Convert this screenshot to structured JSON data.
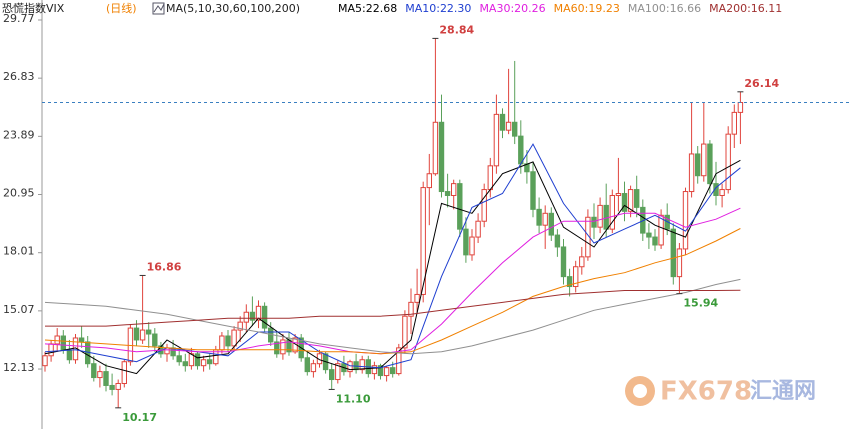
{
  "chart_data": {
    "type": "candlestick",
    "title": "恐慌指数VIX",
    "period": "(日线)",
    "indicator": "MA(5,10,30,60,100,200)",
    "ylim": [
      9.1,
      30.78
    ],
    "yticks": [
      29.77,
      26.83,
      23.89,
      20.95,
      18.01,
      15.07,
      12.13
    ],
    "up_color": "#e0443c",
    "down_color": "#5aa05a",
    "open": [
      12.3,
      12.8,
      13.4,
      13.8,
      13.1,
      12.6,
      13.7,
      13.5,
      12.4,
      11.7,
      12.0,
      11.3,
      11.1,
      11.4,
      12.5,
      14.2,
      13.6,
      14.1,
      13.9,
      13.3,
      12.9,
      13.2,
      12.8,
      12.5,
      12.3,
      12.9,
      12.3,
      12.6,
      12.4,
      13.1,
      13.8,
      13.3,
      14.1,
      14.5,
      15.0,
      14.6,
      15.3,
      14.2,
      13.5,
      12.9,
      13.6,
      13.0,
      13.7,
      12.7,
      12.0,
      12.4,
      12.9,
      12.1,
      11.6,
      12.4,
      12.0,
      12.5,
      12.1,
      12.6,
      11.9,
      12.3,
      11.8,
      12.2,
      11.9,
      13.2,
      14.8,
      15.5,
      15.9,
      21.3,
      22.0,
      24.6,
      21.1,
      20.9,
      21.5,
      19.2,
      17.9,
      18.8,
      19.6,
      21.2,
      22.4,
      25.0,
      24.2,
      24.6,
      23.9,
      22.5,
      22.1,
      20.2,
      19.4,
      20.0,
      18.9,
      18.3,
      16.8,
      16.3,
      17.3,
      17.8,
      19.8,
      19.3,
      20.4,
      19.2,
      20.9,
      21.0,
      20.1,
      21.2,
      20.3,
      19.0,
      18.8,
      18.4,
      19.9,
      19.2,
      16.8,
      18.2,
      21.1,
      23.0,
      21.9,
      23.5,
      21.5,
      20.9,
      21.2,
      24.0,
      25.1
    ],
    "high": [
      13.0,
      13.6,
      14.2,
      14.1,
      13.6,
      13.9,
      14.3,
      13.8,
      12.8,
      12.3,
      12.4,
      11.9,
      11.6,
      12.6,
      14.4,
      14.6,
      16.86,
      14.5,
      14.2,
      13.5,
      13.4,
      13.6,
      13.1,
      12.9,
      13.2,
      13.0,
      12.8,
      12.9,
      13.3,
      14.0,
      14.1,
      14.3,
      14.8,
      15.4,
      15.8,
      15.6,
      15.5,
      14.5,
      14.0,
      13.9,
      14.0,
      13.9,
      13.9,
      13.0,
      12.6,
      13.1,
      13.0,
      12.4,
      12.6,
      12.8,
      12.6,
      12.9,
      12.8,
      12.8,
      12.5,
      12.4,
      12.3,
      12.5,
      13.4,
      15.1,
      16.2,
      17.2,
      21.6,
      23.0,
      28.84,
      26.0,
      22.0,
      21.7,
      21.7,
      19.8,
      19.2,
      20.0,
      21.5,
      22.8,
      26.0,
      25.3,
      27.3,
      27.7,
      24.7,
      23.2,
      22.6,
      20.8,
      20.4,
      20.3,
      19.2,
      18.7,
      17.2,
      17.6,
      18.3,
      20.2,
      20.5,
      20.8,
      21.5,
      21.2,
      22.8,
      21.6,
      21.4,
      21.9,
      20.7,
      19.5,
      19.2,
      20.2,
      20.5,
      19.5,
      18.5,
      21.3,
      25.6,
      23.4,
      25.6,
      23.7,
      22.6,
      21.5,
      24.4,
      25.5,
      26.14
    ],
    "low": [
      12.0,
      12.5,
      13.0,
      12.9,
      12.4,
      12.4,
      13.2,
      12.2,
      11.5,
      11.2,
      11.0,
      10.8,
      10.17,
      11.2,
      12.3,
      13.3,
      13.4,
      13.2,
      13.0,
      12.7,
      12.5,
      12.6,
      12.3,
      12.0,
      12.1,
      12.1,
      12.0,
      12.1,
      12.3,
      12.9,
      13.0,
      13.1,
      13.5,
      14.0,
      14.3,
      14.2,
      14.0,
      13.3,
      12.7,
      12.6,
      12.8,
      12.9,
      12.5,
      11.8,
      11.7,
      12.2,
      11.9,
      11.1,
      11.4,
      11.8,
      11.7,
      11.9,
      11.9,
      11.7,
      11.6,
      11.6,
      11.5,
      11.7,
      11.8,
      12.9,
      13.9,
      15.0,
      15.5,
      19.4,
      21.9,
      20.8,
      20.3,
      20.2,
      18.8,
      17.5,
      17.6,
      18.5,
      19.3,
      20.8,
      22.0,
      23.8,
      24.0,
      23.5,
      22.0,
      21.5,
      19.8,
      19.0,
      18.2,
      18.6,
      17.8,
      16.4,
      15.8,
      16.0,
      16.9,
      17.6,
      18.7,
      19.0,
      18.8,
      19.0,
      20.1,
      19.6,
      19.8,
      19.8,
      18.6,
      18.2,
      18.1,
      18.2,
      18.9,
      16.4,
      15.94,
      17.9,
      20.8,
      21.5,
      21.6,
      21.0,
      20.4,
      20.3,
      21.0,
      23.3,
      23.5
    ],
    "close": [
      12.8,
      13.4,
      13.8,
      13.1,
      12.6,
      13.7,
      13.5,
      12.4,
      11.7,
      12.0,
      11.3,
      11.1,
      11.4,
      12.5,
      14.2,
      13.6,
      14.1,
      13.9,
      13.3,
      12.9,
      13.2,
      12.8,
      12.5,
      12.3,
      12.9,
      12.3,
      12.6,
      12.4,
      13.1,
      13.8,
      13.3,
      14.1,
      14.5,
      15.0,
      14.6,
      15.3,
      14.2,
      13.5,
      12.9,
      13.6,
      13.0,
      13.7,
      12.7,
      12.0,
      12.4,
      12.9,
      12.1,
      11.6,
      12.4,
      12.0,
      12.5,
      12.1,
      12.6,
      11.9,
      12.3,
      11.8,
      12.2,
      11.9,
      13.2,
      14.8,
      15.5,
      15.9,
      21.3,
      22.0,
      24.6,
      21.1,
      20.9,
      21.5,
      19.2,
      17.9,
      18.8,
      19.6,
      21.2,
      22.4,
      25.0,
      24.2,
      24.6,
      23.9,
      22.5,
      22.1,
      20.2,
      19.4,
      20.0,
      18.9,
      18.3,
      16.8,
      16.3,
      17.3,
      17.8,
      19.8,
      19.3,
      20.4,
      19.2,
      20.9,
      21.0,
      20.1,
      21.2,
      20.3,
      19.0,
      18.8,
      18.4,
      19.9,
      19.2,
      16.8,
      18.2,
      21.1,
      23.0,
      21.9,
      23.5,
      21.5,
      20.9,
      21.2,
      24.0,
      25.1,
      25.6
    ],
    "annotations": [
      {
        "label": "28.84",
        "value": 28.84
      },
      {
        "label": "16.86",
        "value": 16.86
      },
      {
        "label": "10.17",
        "value": 10.17
      },
      {
        "label": "11.10",
        "value": 11.1
      },
      {
        "label": "15.94",
        "value": 15.94
      },
      {
        "label": "26.14",
        "value": 26.14
      }
    ],
    "series": [
      {
        "name": "MA5:22.68",
        "color": "#000000",
        "x": [
          0,
          5,
          10,
          15,
          20,
          25,
          30,
          35,
          40,
          45,
          50,
          55,
          60,
          65,
          70,
          75,
          80,
          85,
          90,
          95,
          100,
          105,
          110,
          114
        ],
        "values": [
          12.9,
          13.2,
          12.3,
          11.9,
          13.6,
          12.7,
          12.9,
          14.7,
          13.6,
          12.6,
          12.1,
          12.2,
          13.6,
          20.5,
          20.0,
          22.0,
          22.6,
          19.3,
          18.3,
          20.4,
          19.4,
          18.8,
          22.0,
          22.68
        ]
      },
      {
        "name": "MA10:22.30",
        "color": "#1f3fd0",
        "x": [
          0,
          5,
          10,
          15,
          20,
          25,
          30,
          35,
          40,
          45,
          50,
          55,
          60,
          65,
          70,
          75,
          80,
          85,
          90,
          95,
          100,
          105,
          110,
          114
        ],
        "values": [
          13.0,
          13.1,
          12.8,
          12.5,
          13.2,
          13.0,
          12.8,
          14.0,
          14.0,
          13.0,
          12.3,
          12.2,
          12.6,
          16.8,
          20.3,
          21.0,
          23.5,
          20.5,
          18.5,
          19.2,
          19.9,
          19.1,
          21.3,
          22.3
        ]
      },
      {
        "name": "MA30:20.26",
        "color": "#e020e0",
        "x": [
          0,
          5,
          10,
          15,
          20,
          25,
          30,
          35,
          40,
          45,
          50,
          55,
          60,
          65,
          70,
          75,
          80,
          85,
          90,
          95,
          100,
          105,
          110,
          114
        ],
        "values": [
          13.4,
          13.3,
          13.2,
          13.0,
          13.1,
          13.0,
          13.0,
          13.3,
          13.5,
          13.3,
          13.0,
          12.9,
          13.1,
          14.4,
          16.0,
          17.5,
          18.8,
          19.6,
          19.6,
          20.0,
          20.0,
          19.3,
          19.7,
          20.26
        ]
      },
      {
        "name": "MA60:19.23",
        "color": "#f08000",
        "x": [
          0,
          5,
          10,
          15,
          20,
          25,
          30,
          35,
          40,
          45,
          50,
          55,
          60,
          65,
          70,
          75,
          80,
          85,
          90,
          95,
          100,
          105,
          110,
          114
        ],
        "values": [
          13.6,
          13.5,
          13.4,
          13.3,
          13.2,
          13.1,
          13.1,
          13.1,
          13.1,
          13.0,
          13.0,
          12.9,
          13.0,
          13.6,
          14.3,
          15.0,
          15.8,
          16.3,
          16.7,
          17.0,
          17.5,
          17.9,
          18.6,
          19.23
        ]
      },
      {
        "name": "MA100:16.66",
        "color": "#909090",
        "x": [
          0,
          5,
          10,
          15,
          20,
          25,
          30,
          35,
          40,
          45,
          50,
          55,
          60,
          65,
          70,
          75,
          80,
          85,
          90,
          95,
          100,
          105,
          110,
          114
        ],
        "values": [
          15.5,
          15.4,
          15.3,
          15.1,
          14.9,
          14.6,
          14.3,
          14.0,
          13.7,
          13.4,
          13.2,
          13.0,
          12.9,
          13.0,
          13.3,
          13.7,
          14.1,
          14.6,
          15.1,
          15.4,
          15.7,
          16.0,
          16.4,
          16.66
        ]
      },
      {
        "name": "MA200:16.11",
        "color": "#a03030",
        "x": [
          0,
          5,
          10,
          15,
          20,
          25,
          30,
          35,
          40,
          45,
          50,
          55,
          60,
          65,
          70,
          75,
          80,
          85,
          90,
          95,
          100,
          105,
          110,
          114
        ],
        "values": [
          14.3,
          14.3,
          14.3,
          14.4,
          14.5,
          14.6,
          14.7,
          14.7,
          14.7,
          14.8,
          14.8,
          14.8,
          14.9,
          15.1,
          15.3,
          15.5,
          15.7,
          15.9,
          16.0,
          16.1,
          16.1,
          16.1,
          16.1,
          16.11
        ]
      }
    ],
    "watermark": [
      "FX678",
      "汇通网"
    ]
  }
}
